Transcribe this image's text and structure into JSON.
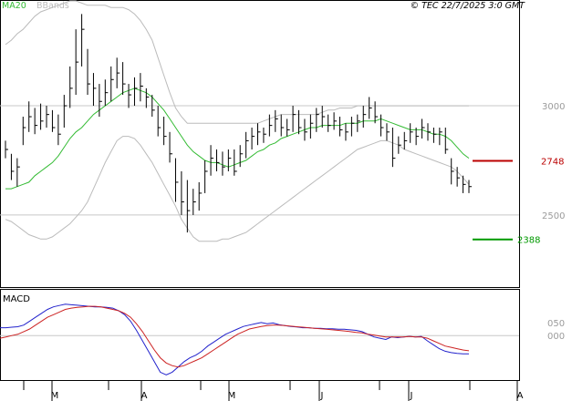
{
  "header": {
    "ma_label": "MA20",
    "bbands_label": "BBands",
    "copyright": "© TEC 22/7/2025 3:0 GMT"
  },
  "macd_label": "MACD",
  "colors": {
    "ma": "#33bb33",
    "bbands": "#bbbbbb",
    "price": "#000000",
    "macd": "#2222cc",
    "signal": "#cc2222",
    "resistance": "#bb0000",
    "support": "#009900",
    "grid": "#c8c8c8"
  },
  "chart_data": [
    {
      "type": "ohlc",
      "title": "",
      "x_labels": [
        "M",
        "A",
        "M",
        "J",
        "J",
        "A"
      ],
      "y_ticks": [
        "3000",
        "2500"
      ],
      "y_tick_values": [
        3000,
        2500
      ],
      "ylim": [
        2170,
        3480
      ],
      "levels": [
        {
          "label": "2748",
          "value": 2748,
          "role": "resistance"
        },
        {
          "label": "2388",
          "value": 2388,
          "role": "support"
        }
      ],
      "bars": [
        [
          2840,
          2760,
          2800
        ],
        [
          2780,
          2660,
          2700
        ],
        [
          2760,
          2630,
          2720
        ],
        [
          2950,
          2820,
          2900
        ],
        [
          3020,
          2880,
          2950
        ],
        [
          2990,
          2870,
          2910
        ],
        [
          3010,
          2890,
          2930
        ],
        [
          3000,
          2900,
          2960
        ],
        [
          2980,
          2880,
          2900
        ],
        [
          2960,
          2820,
          2870
        ],
        [
          3050,
          2900,
          3000
        ],
        [
          3180,
          2990,
          3080
        ],
        [
          3350,
          3050,
          3200
        ],
        [
          3420,
          3180,
          3350
        ],
        [
          3260,
          3050,
          3100
        ],
        [
          3150,
          3000,
          3080
        ],
        [
          3100,
          2950,
          3020
        ],
        [
          3120,
          3000,
          3060
        ],
        [
          3180,
          3020,
          3120
        ],
        [
          3220,
          3080,
          3150
        ],
        [
          3200,
          3050,
          3100
        ],
        [
          3100,
          2990,
          3050
        ],
        [
          3130,
          3000,
          3080
        ],
        [
          3150,
          3020,
          3090
        ],
        [
          3080,
          2990,
          3040
        ],
        [
          3050,
          2950,
          2980
        ],
        [
          3000,
          2860,
          2900
        ],
        [
          2950,
          2820,
          2860
        ],
        [
          2880,
          2740,
          2780
        ],
        [
          2760,
          2560,
          2650
        ],
        [
          2700,
          2500,
          2560
        ],
        [
          2660,
          2420,
          2520
        ],
        [
          2620,
          2500,
          2560
        ],
        [
          2650,
          2520,
          2600
        ],
        [
          2750,
          2600,
          2700
        ],
        [
          2820,
          2680,
          2760
        ],
        [
          2800,
          2700,
          2740
        ],
        [
          2790,
          2680,
          2720
        ],
        [
          2800,
          2700,
          2760
        ],
        [
          2800,
          2680,
          2700
        ],
        [
          2820,
          2720,
          2780
        ],
        [
          2880,
          2760,
          2840
        ],
        [
          2900,
          2800,
          2860
        ],
        [
          2920,
          2820,
          2880
        ],
        [
          2900,
          2830,
          2870
        ],
        [
          2960,
          2860,
          2910
        ],
        [
          2980,
          2880,
          2940
        ],
        [
          2960,
          2860,
          2900
        ],
        [
          2940,
          2860,
          2890
        ],
        [
          3000,
          2880,
          2960
        ],
        [
          2980,
          2870,
          2900
        ],
        [
          2940,
          2840,
          2880
        ],
        [
          2960,
          2850,
          2920
        ],
        [
          2990,
          2880,
          2960
        ],
        [
          3000,
          2900,
          2950
        ],
        [
          2960,
          2880,
          2910
        ],
        [
          2970,
          2890,
          2930
        ],
        [
          2950,
          2860,
          2890
        ],
        [
          2920,
          2840,
          2880
        ],
        [
          2950,
          2860,
          2920
        ],
        [
          2960,
          2880,
          2930
        ],
        [
          3000,
          2900,
          2960
        ],
        [
          3040,
          2940,
          2990
        ],
        [
          3020,
          2920,
          2950
        ],
        [
          2960,
          2860,
          2900
        ],
        [
          2920,
          2840,
          2880
        ],
        [
          2900,
          2720,
          2760
        ],
        [
          2860,
          2780,
          2820
        ],
        [
          2880,
          2800,
          2840
        ],
        [
          2920,
          2830,
          2880
        ],
        [
          2900,
          2820,
          2860
        ],
        [
          2940,
          2850,
          2900
        ],
        [
          2920,
          2840,
          2880
        ],
        [
          2900,
          2830,
          2870
        ],
        [
          2900,
          2820,
          2880
        ],
        [
          2900,
          2780,
          2800
        ],
        [
          2760,
          2640,
          2700
        ],
        [
          2720,
          2630,
          2670
        ],
        [
          2680,
          2600,
          2640
        ],
        [
          2660,
          2600,
          2630
        ]
      ],
      "ma20": [
        2620,
        2620,
        2630,
        2640,
        2650,
        2680,
        2700,
        2720,
        2740,
        2770,
        2810,
        2850,
        2880,
        2900,
        2930,
        2960,
        2980,
        3000,
        3020,
        3040,
        3060,
        3070,
        3080,
        3070,
        3060,
        3040,
        3010,
        2980,
        2940,
        2900,
        2860,
        2820,
        2790,
        2770,
        2750,
        2740,
        2740,
        2730,
        2720,
        2730,
        2740,
        2750,
        2770,
        2790,
        2800,
        2820,
        2830,
        2850,
        2860,
        2870,
        2880,
        2890,
        2900,
        2900,
        2910,
        2910,
        2910,
        2910,
        2920,
        2920,
        2920,
        2930,
        2930,
        2930,
        2940,
        2930,
        2920,
        2910,
        2900,
        2890,
        2890,
        2890,
        2880,
        2870,
        2870,
        2860,
        2840,
        2810,
        2780,
        2760
      ],
      "bb_upper": [
        3280,
        3300,
        3330,
        3350,
        3380,
        3410,
        3430,
        3440,
        3450,
        3460,
        3470,
        3480,
        3480,
        3470,
        3460,
        3460,
        3460,
        3460,
        3450,
        3450,
        3450,
        3440,
        3420,
        3390,
        3350,
        3300,
        3220,
        3140,
        3060,
        2990,
        2950,
        2920,
        2920,
        2920,
        2920,
        2920,
        2920,
        2920,
        2920,
        2920,
        2920,
        2920,
        2920,
        2920,
        2930,
        2940,
        2950,
        2960,
        2960,
        2960,
        2960,
        2960,
        2960,
        2960,
        2970,
        2980,
        2980,
        2990,
        2990,
        2990,
        3000,
        3000,
        3000,
        3000,
        3000,
        3000,
        3000,
        3000,
        3000,
        3000,
        3000,
        3000,
        3000,
        3000,
        3000,
        3000,
        3000,
        3000,
        3000,
        3000
      ],
      "bb_lower": [
        2480,
        2470,
        2450,
        2430,
        2410,
        2400,
        2390,
        2390,
        2400,
        2420,
        2440,
        2460,
        2490,
        2520,
        2560,
        2620,
        2680,
        2740,
        2790,
        2840,
        2860,
        2860,
        2850,
        2820,
        2780,
        2740,
        2690,
        2640,
        2590,
        2540,
        2480,
        2440,
        2400,
        2380,
        2380,
        2380,
        2380,
        2390,
        2390,
        2400,
        2410,
        2420,
        2440,
        2460,
        2480,
        2500,
        2520,
        2540,
        2560,
        2580,
        2600,
        2620,
        2640,
        2660,
        2680,
        2700,
        2720,
        2740,
        2760,
        2780,
        2800,
        2810,
        2820,
        2830,
        2840,
        2840,
        2830,
        2820,
        2800,
        2790,
        2780,
        2770,
        2760,
        2750,
        2740,
        2730,
        2720,
        2700,
        2670,
        2640
      ]
    },
    {
      "type": "line",
      "title": "MACD",
      "y_ticks": [
        "050",
        "000"
      ],
      "y_tick_values": [
        50,
        0
      ],
      "ylim": [
        -170,
        175
      ],
      "series": [
        {
          "role": "macd",
          "values": [
            30,
            30,
            32,
            34,
            40,
            55,
            70,
            85,
            100,
            110,
            115,
            120,
            118,
            116,
            114,
            112,
            110,
            110,
            108,
            105,
            95,
            80,
            55,
            20,
            -20,
            -60,
            -100,
            -140,
            -150,
            -140,
            -120,
            -100,
            -85,
            -75,
            -60,
            -40,
            -25,
            -10,
            5,
            15,
            25,
            35,
            40,
            45,
            50,
            45,
            48,
            42,
            38,
            35,
            33,
            30,
            30,
            28,
            28,
            26,
            26,
            24,
            24,
            22,
            20,
            15,
            5,
            -5,
            -10,
            -15,
            -5,
            -8,
            -5,
            -3,
            -5,
            -3,
            -20,
            -35,
            -50,
            -60,
            -65,
            -68,
            -70,
            -70
          ]
        },
        {
          "role": "signal",
          "values": [
            -10,
            -5,
            0,
            5,
            15,
            25,
            40,
            55,
            70,
            80,
            90,
            100,
            105,
            108,
            110,
            112,
            112,
            110,
            105,
            100,
            95,
            85,
            70,
            45,
            15,
            -20,
            -55,
            -85,
            -105,
            -115,
            -120,
            -115,
            -105,
            -95,
            -85,
            -70,
            -55,
            -40,
            -25,
            -10,
            5,
            15,
            25,
            30,
            35,
            38,
            40,
            40,
            38,
            36,
            34,
            32,
            30,
            28,
            26,
            24,
            22,
            20,
            18,
            15,
            12,
            10,
            5,
            2,
            -2,
            -5,
            -5,
            -5,
            -5,
            -3,
            -5,
            -5,
            -10,
            -20,
            -30,
            -40,
            -45,
            -50,
            -55,
            -58
          ]
        }
      ]
    }
  ]
}
